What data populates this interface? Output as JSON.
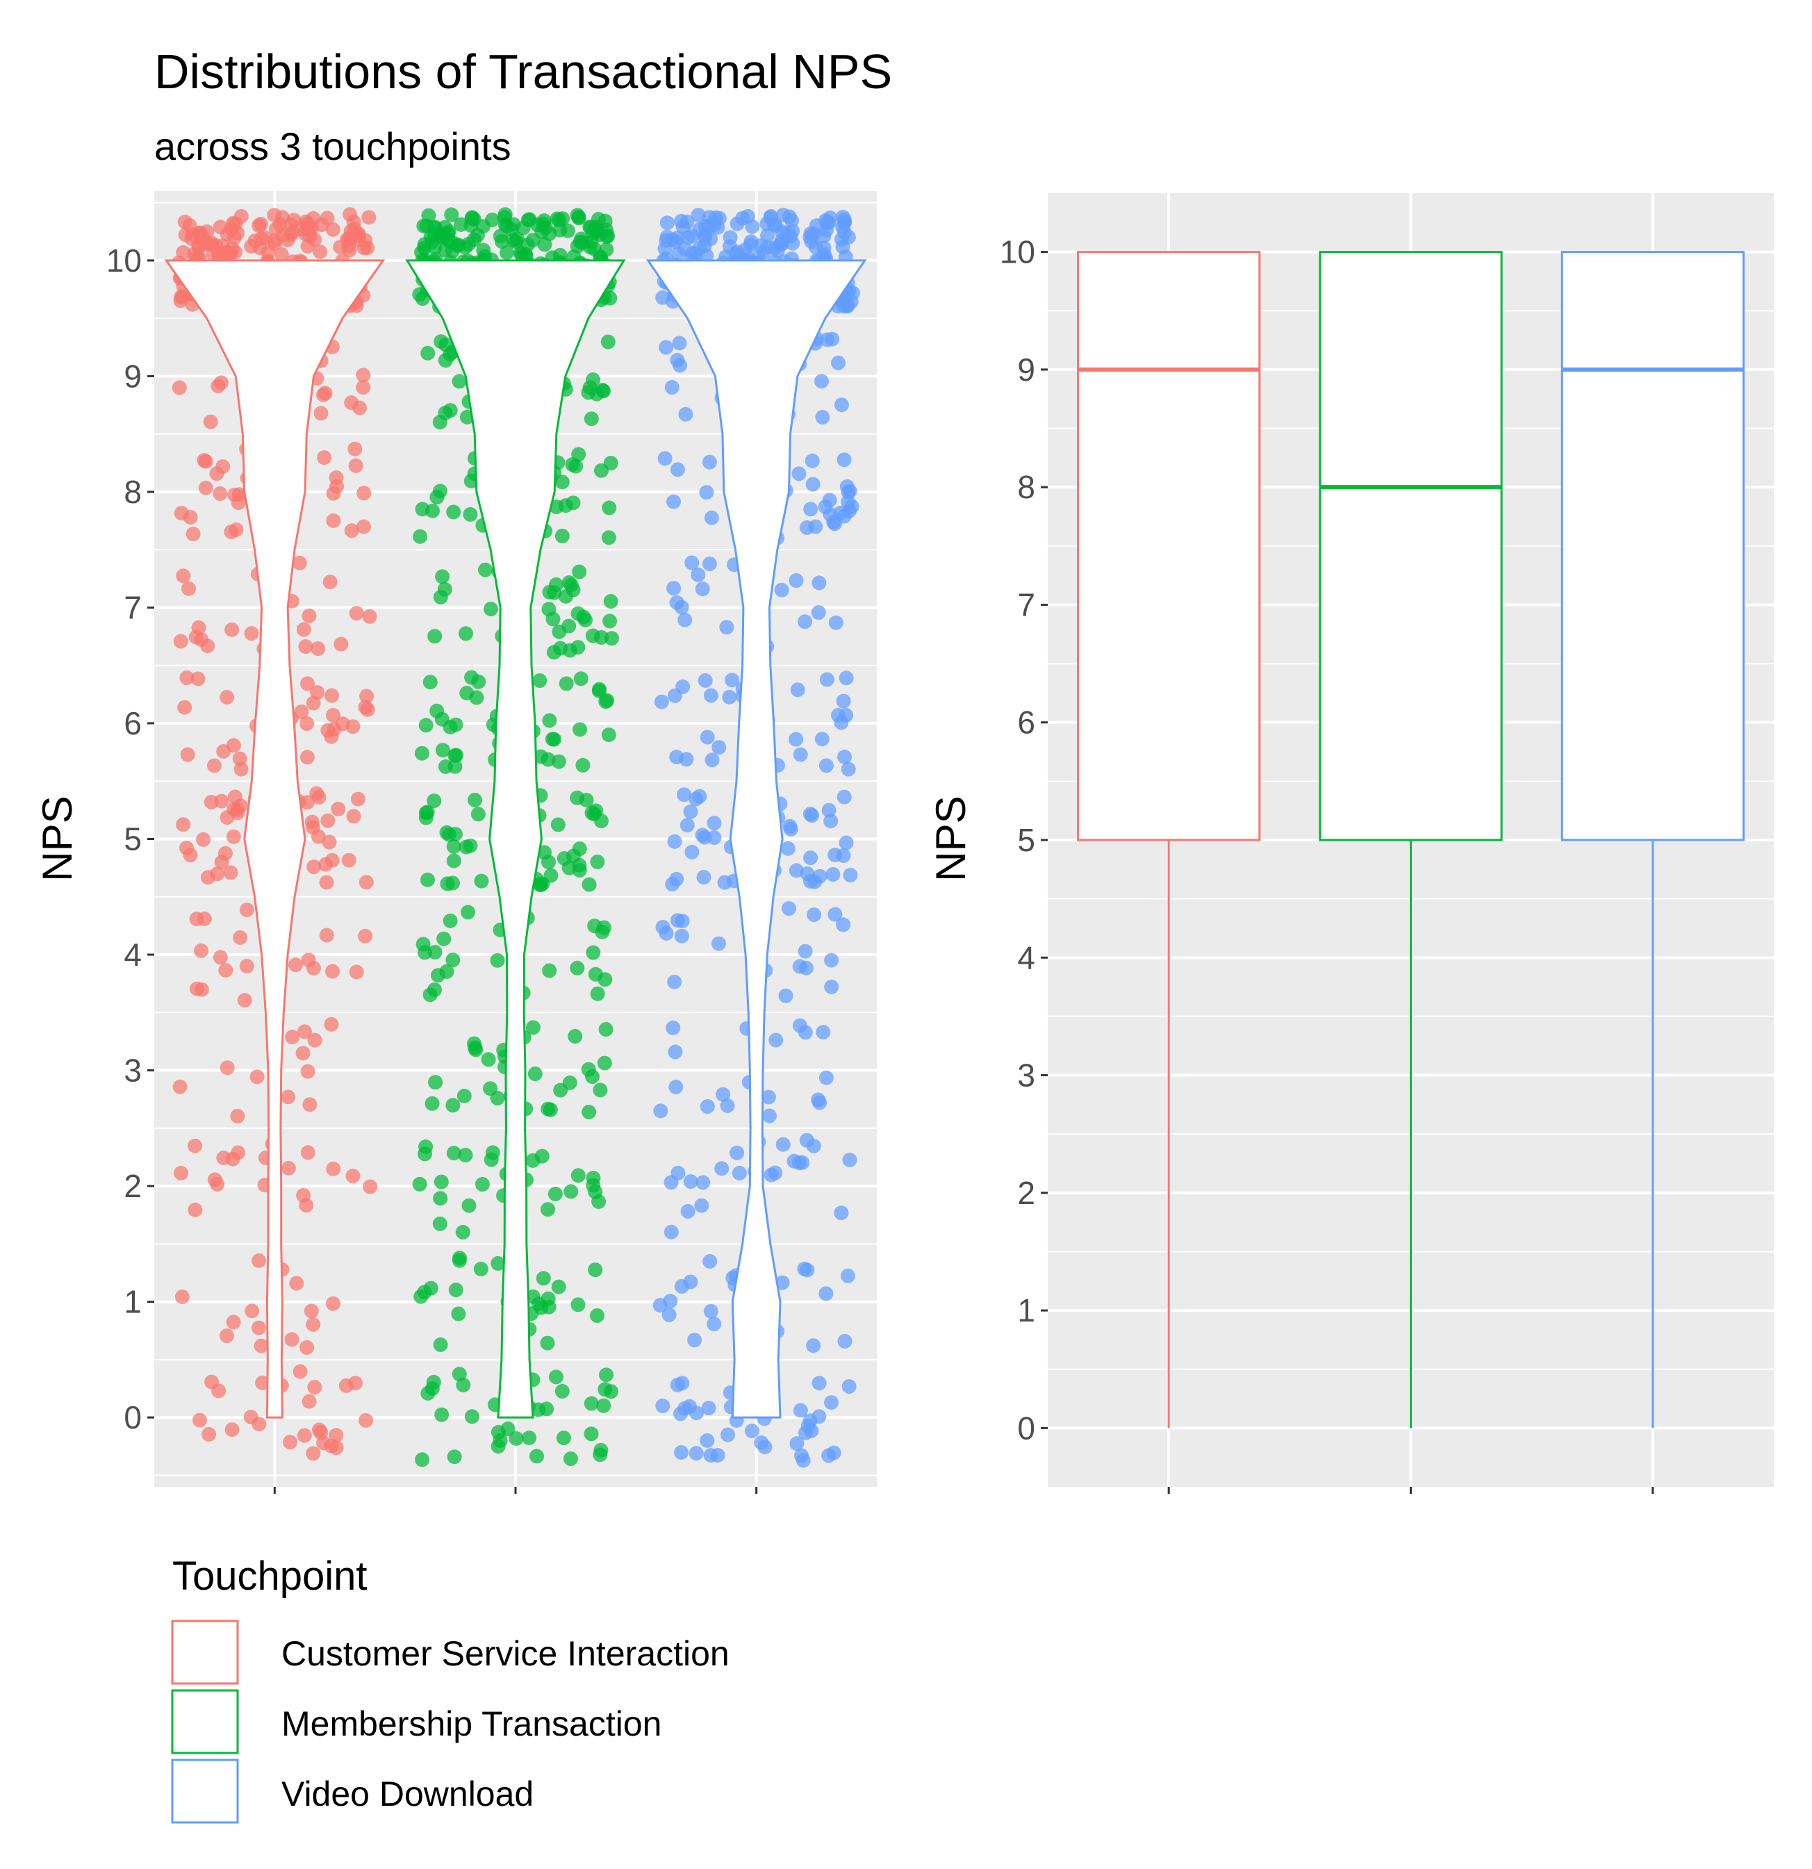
{
  "chart_data": [
    {
      "type": "scatter",
      "subtype": "jittered points with violin outlines",
      "title": "Distributions of Transactional NPS",
      "subtitle": "across 3 touchpoints",
      "xlabel": "",
      "ylabel": "NPS",
      "ylim": [
        -0.6,
        10.6
      ],
      "y_ticks": [
        "0",
        "1",
        "2",
        "3",
        "4",
        "5",
        "6",
        "7",
        "8",
        "9",
        "10"
      ],
      "grid": true,
      "categories": [
        "Customer Service Interaction",
        "Membership Transaction",
        "Video Download"
      ],
      "series": [
        {
          "name": "Customer Service Interaction",
          "color": "#F8766D",
          "points_per_score": [
            24,
            14,
            18,
            12,
            20,
            48,
            32,
            22,
            36,
            22,
            190
          ],
          "violin_relative_width": [
            0.07,
            0.07,
            0.06,
            0.06,
            0.12,
            0.28,
            0.18,
            0.12,
            0.28,
            0.36,
            1.0
          ]
        },
        {
          "name": "Membership Transaction",
          "color": "#00BA38",
          "points_per_score": [
            34,
            28,
            26,
            30,
            24,
            48,
            42,
            36,
            42,
            36,
            200
          ],
          "violin_relative_width": [
            0.16,
            0.12,
            0.1,
            0.09,
            0.08,
            0.24,
            0.18,
            0.14,
            0.36,
            0.46,
            1.0
          ]
        },
        {
          "name": "Video Download",
          "color": "#619CFF",
          "points_per_score": [
            38,
            24,
            22,
            18,
            20,
            44,
            30,
            26,
            38,
            30,
            180
          ],
          "violin_relative_width": [
            0.22,
            0.22,
            0.06,
            0.06,
            0.1,
            0.24,
            0.16,
            0.12,
            0.3,
            0.38,
            1.0
          ]
        }
      ]
    },
    {
      "type": "box",
      "xlabel": "",
      "ylabel": "NPS",
      "ylim": [
        -0.5,
        10.5
      ],
      "y_ticks": [
        "0",
        "1",
        "2",
        "3",
        "4",
        "5",
        "6",
        "7",
        "8",
        "9",
        "10"
      ],
      "grid": true,
      "categories": [
        "Customer Service Interaction",
        "Membership Transaction",
        "Video Download"
      ],
      "series": [
        {
          "name": "Customer Service Interaction",
          "color": "#F8766D",
          "min": 0,
          "q1": 5,
          "median": 9,
          "q3": 10,
          "max": 10
        },
        {
          "name": "Membership Transaction",
          "color": "#00BA38",
          "min": 0,
          "q1": 5,
          "median": 8,
          "q3": 10,
          "max": 10
        },
        {
          "name": "Video Download",
          "color": "#619CFF",
          "min": 0,
          "q1": 5,
          "median": 9,
          "q3": 10,
          "max": 10
        }
      ]
    }
  ],
  "legend": {
    "title": "Touchpoint",
    "position": "bottom-left",
    "entries": [
      {
        "label": "Customer Service Interaction",
        "color": "#F8766D"
      },
      {
        "label": "Membership Transaction",
        "color": "#00BA38"
      },
      {
        "label": "Video Download",
        "color": "#619CFF"
      }
    ]
  },
  "colors": {
    "panel_background": "#EBEBEB",
    "grid": "#FFFFFF",
    "tick_text": "#4D4D4D"
  }
}
